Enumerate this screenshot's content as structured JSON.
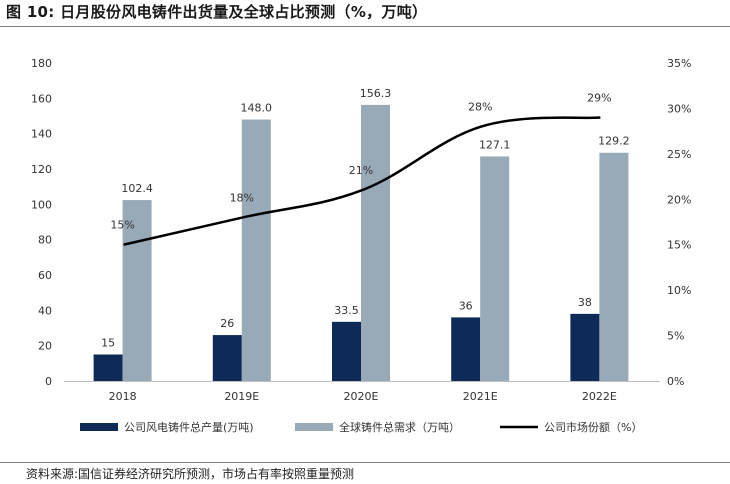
{
  "figure": {
    "title": "图 10:  日月股份风电铸件出货量及全球占比预测（%，万吨）",
    "source": "资料来源:国信证券经济研究所预测，市场占有率按照重量预测"
  },
  "chart_data": {
    "type": "bar",
    "categories": [
      "2018",
      "2019E",
      "2020E",
      "2021E",
      "2022E"
    ],
    "series": [
      {
        "name": "公司风电铸件总产量(万吨)",
        "type": "bar",
        "axis": "left",
        "color": "#0e2a56",
        "values": [
          15,
          26,
          33.5,
          36,
          38
        ],
        "labels": [
          "15",
          "26",
          "33.5",
          "36",
          "38"
        ]
      },
      {
        "name": "全球铸件总需求（万吨）",
        "type": "bar",
        "axis": "left",
        "color": "#98a9b8",
        "values": [
          102.4,
          148.0,
          156.3,
          127.1,
          129.2
        ],
        "labels": [
          "102.4",
          "148.0",
          "156.3",
          "127.1",
          "129.2"
        ]
      },
      {
        "name": "公司市场份额（%）",
        "type": "line",
        "axis": "right",
        "color": "#000000",
        "values": [
          15,
          18,
          21,
          28,
          29
        ],
        "labels": [
          "15%",
          "18%",
          "21%",
          "28%",
          "29%"
        ]
      }
    ],
    "y_left": {
      "min": 0,
      "max": 180,
      "ticks": [
        "0",
        "20",
        "40",
        "60",
        "80",
        "100",
        "120",
        "140",
        "160",
        "180"
      ]
    },
    "y_right": {
      "min": 0,
      "max": 35,
      "ticks": [
        "0%",
        "5%",
        "10%",
        "15%",
        "20%",
        "25%",
        "30%",
        "35%"
      ]
    },
    "grid": false,
    "legend_position": "bottom"
  }
}
